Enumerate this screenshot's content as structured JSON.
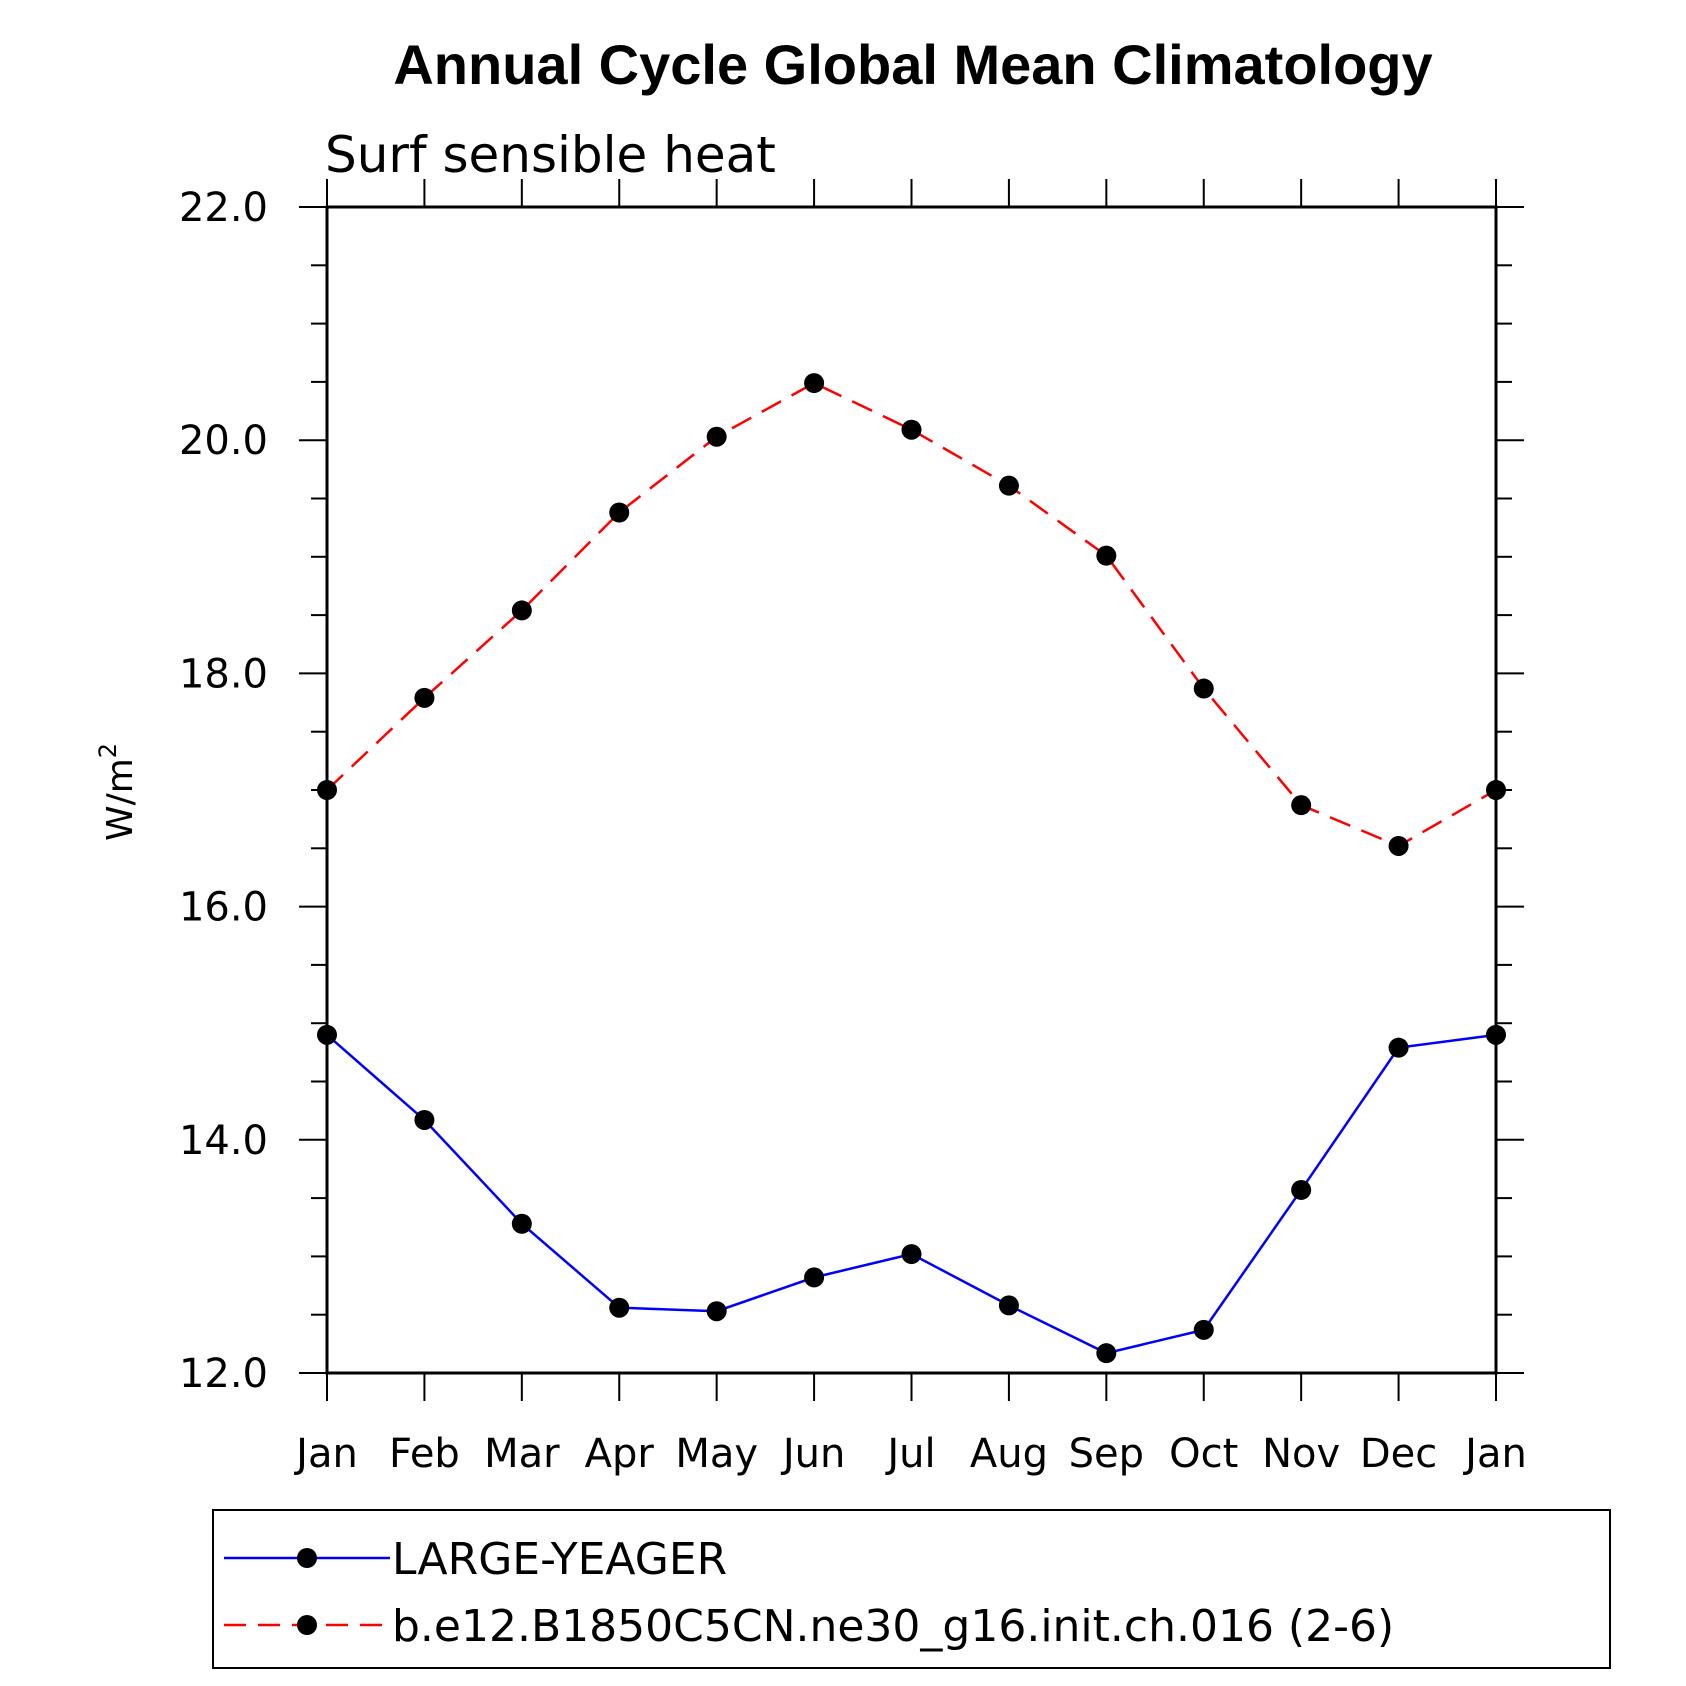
{
  "chart_data": {
    "type": "line",
    "title": "Annual Cycle Global Mean Climatology",
    "subtitle": "Surf sensible heat",
    "ylabel_base": "W/m",
    "ylabel_sup": "2",
    "xlabel": "",
    "categories": [
      "Jan",
      "Feb",
      "Mar",
      "Apr",
      "May",
      "Jun",
      "Jul",
      "Aug",
      "Sep",
      "Oct",
      "Nov",
      "Dec",
      "Jan"
    ],
    "ylim": [
      12.0,
      22.0
    ],
    "yticks": [
      "12.0",
      "14.0",
      "16.0",
      "18.0",
      "20.0",
      "22.0"
    ],
    "series": [
      {
        "name": "LARGE-YEAGER",
        "color": "#0000ff",
        "dash": "solid",
        "values": [
          14.9,
          14.17,
          13.28,
          12.56,
          12.53,
          12.82,
          13.02,
          12.58,
          12.17,
          12.37,
          13.57,
          14.79,
          14.9
        ]
      },
      {
        "name": "b.e12.B1850C5CN.ne30_g16.init.ch.016 (2-6)",
        "color": "#ff0000",
        "dash": "dashed",
        "values": [
          17.0,
          17.79,
          18.54,
          19.38,
          20.03,
          20.49,
          20.09,
          19.61,
          19.01,
          17.87,
          16.87,
          16.52,
          17.0
        ]
      }
    ],
    "legend": "bottom",
    "grid": false
  }
}
